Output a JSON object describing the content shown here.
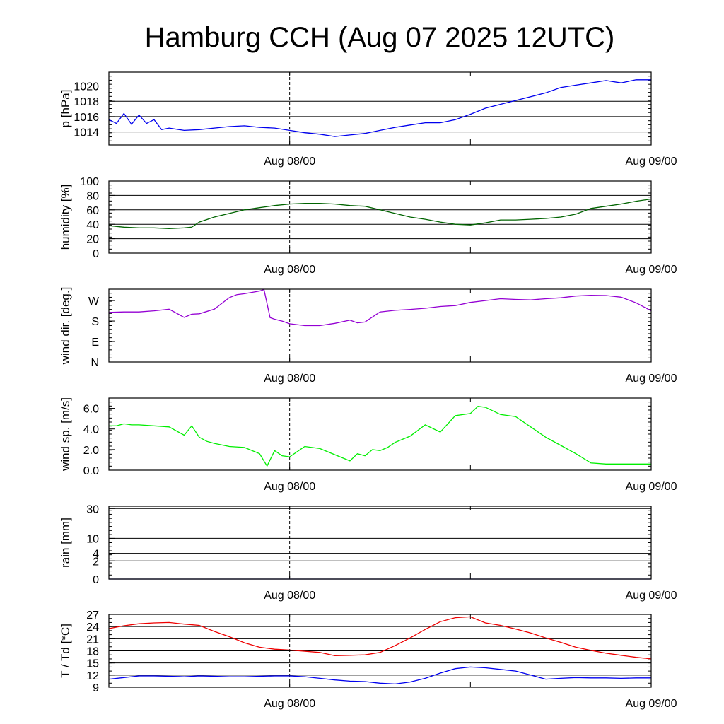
{
  "title": "Hamburg CCH (Aug 07 2025 12UTC)",
  "x_tick_labels": [
    "Aug 08/00",
    "Aug 09/00"
  ],
  "chart_data": [
    {
      "type": "line",
      "ylabel": "p [hPa]",
      "ylim": [
        1012.3,
        1021.8
      ],
      "yticks": [
        1014,
        1016,
        1018,
        1020
      ],
      "ytick_labels": [
        "1014",
        "1016",
        "1018",
        "1020"
      ],
      "grid": true,
      "series": [
        {
          "color": "#0000ee",
          "x": [
            0,
            0.5,
            1,
            1.5,
            2,
            2.5,
            3,
            3.5,
            4,
            5,
            6,
            7,
            8,
            9,
            10,
            11,
            12,
            13,
            14,
            15,
            16,
            17,
            18,
            19,
            20,
            21,
            22,
            23,
            24,
            25,
            26,
            27,
            28,
            29,
            30,
            31,
            32,
            33,
            34,
            35,
            36
          ],
          "y": [
            1015.6,
            1015.1,
            1016.4,
            1015.0,
            1016.2,
            1015.1,
            1015.6,
            1014.3,
            1014.5,
            1014.2,
            1014.3,
            1014.5,
            1014.7,
            1014.8,
            1014.6,
            1014.5,
            1014.2,
            1013.9,
            1013.7,
            1013.4,
            1013.6,
            1013.8,
            1014.2,
            1014.6,
            1014.9,
            1015.2,
            1015.2,
            1015.6,
            1016.3,
            1017.1,
            1017.6,
            1018.1,
            1018.6,
            1019.1,
            1019.8,
            1020.1,
            1020.4,
            1020.7,
            1020.4,
            1020.8,
            1020.8
          ]
        }
      ]
    },
    {
      "type": "line",
      "ylabel": "humidity [%]",
      "ylim": [
        0,
        100
      ],
      "yticks": [
        0,
        20,
        40,
        60,
        80,
        100
      ],
      "ytick_labels": [
        "0",
        "20",
        "40",
        "60",
        "80",
        "100"
      ],
      "grid": true,
      "series": [
        {
          "color": "#006400",
          "x": [
            0,
            1,
            2,
            3,
            4,
            5,
            5.5,
            6,
            7,
            8,
            9,
            10,
            11,
            12,
            13,
            14,
            15,
            16,
            17,
            18,
            19,
            20,
            21,
            22,
            23,
            24,
            25,
            26,
            27,
            28,
            29,
            30,
            31,
            32,
            33,
            34,
            35,
            36
          ],
          "y": [
            38,
            36,
            35,
            35,
            34,
            35,
            36,
            43,
            50,
            55,
            60,
            63,
            66,
            68,
            69,
            69,
            68,
            66,
            65,
            60,
            55,
            50,
            47,
            43,
            40,
            39,
            42,
            46,
            46,
            47,
            48,
            50,
            54,
            62,
            65,
            68,
            72,
            75
          ]
        }
      ]
    },
    {
      "type": "line",
      "ylabel": "wind dir. [deg.]",
      "ylim": [
        0,
        320
      ],
      "yticks": [
        0,
        90,
        180,
        270
      ],
      "ytick_labels": [
        "N",
        "E",
        "S",
        "W"
      ],
      "grid": false,
      "series": [
        {
          "color": "#9400d3",
          "x": [
            0,
            1,
            2,
            3,
            4,
            5,
            5.5,
            6,
            7,
            8,
            8.5,
            9,
            10,
            10.3,
            10.7,
            11,
            11.5,
            12,
            13,
            14,
            15,
            16,
            16.5,
            17,
            18,
            19,
            20,
            21,
            22,
            23,
            24,
            25,
            26,
            27,
            28,
            29,
            30,
            31,
            32,
            33,
            34,
            35,
            36
          ],
          "y": [
            218,
            220,
            220,
            225,
            232,
            196,
            210,
            212,
            232,
            283,
            296,
            300,
            312,
            318,
            195,
            188,
            180,
            168,
            160,
            160,
            170,
            184,
            172,
            176,
            220,
            227,
            231,
            236,
            244,
            248,
            262,
            270,
            278,
            275,
            273,
            278,
            282,
            290,
            293,
            292,
            285,
            260,
            225
          ]
        }
      ]
    },
    {
      "type": "line",
      "ylabel": "wind sp. [m/s]",
      "ylim": [
        0,
        7
      ],
      "yticks": [
        0,
        2,
        4,
        6
      ],
      "ytick_labels": [
        "0.0",
        "2.0",
        "4.0",
        "6.0"
      ],
      "grid": false,
      "series": [
        {
          "color": "#00ee00",
          "x": [
            0,
            0.5,
            1,
            1.5,
            2,
            3,
            4,
            5,
            5.5,
            6,
            6.5,
            7,
            8,
            9,
            10,
            10.5,
            11,
            11.5,
            12,
            13,
            14,
            15,
            16,
            16.5,
            17,
            17.5,
            18,
            18.5,
            19,
            20,
            21,
            22,
            22.5,
            23,
            24,
            24.5,
            25,
            26,
            27,
            28,
            29,
            30,
            31,
            32,
            33,
            34,
            35,
            36
          ],
          "y": [
            4.3,
            4.3,
            4.5,
            4.4,
            4.4,
            4.3,
            4.2,
            3.4,
            4.3,
            3.2,
            2.8,
            2.6,
            2.3,
            2.2,
            1.6,
            0.4,
            1.9,
            1.4,
            1.3,
            2.3,
            2.1,
            1.5,
            0.9,
            1.6,
            1.4,
            2.0,
            1.9,
            2.2,
            2.7,
            3.3,
            4.4,
            3.7,
            4.5,
            5.3,
            5.5,
            6.2,
            6.1,
            5.4,
            5.2,
            4.2,
            3.2,
            2.4,
            1.6,
            0.7,
            0.6,
            0.6,
            0.6,
            0.6
          ]
        }
      ]
    },
    {
      "type": "line",
      "ylabel": "rain [mm]",
      "ylim": [
        0,
        32
      ],
      "yticks": [
        0,
        2,
        4,
        10,
        30
      ],
      "ytick_labels": [
        "0",
        "2",
        "4",
        "10",
        "30"
      ],
      "grid": true,
      "series": [
        {
          "color": "#000080",
          "x": [
            0,
            36
          ],
          "y": [
            0,
            0
          ]
        }
      ]
    },
    {
      "type": "line",
      "ylabel": "T / Td [*C]",
      "ylim": [
        9,
        27
      ],
      "yticks": [
        9,
        12,
        15,
        18,
        21,
        24,
        27
      ],
      "ytick_labels": [
        "9",
        "12",
        "15",
        "18",
        "21",
        "24",
        "27"
      ],
      "grid": true,
      "series": [
        {
          "color": "#ee0000",
          "x": [
            0,
            1,
            2,
            3,
            4,
            5,
            6,
            7,
            8,
            9,
            10,
            11,
            12,
            13,
            14,
            15,
            16,
            17,
            18,
            19,
            20,
            21,
            22,
            23,
            24,
            25,
            26,
            27,
            28,
            29,
            30,
            31,
            32,
            33,
            34,
            35,
            36
          ],
          "y": [
            23.5,
            24.2,
            24.7,
            24.9,
            25.0,
            24.6,
            24.3,
            22.8,
            21.5,
            20.0,
            18.9,
            18.4,
            18.2,
            17.9,
            17.6,
            16.8,
            16.9,
            17.0,
            17.6,
            19.3,
            21.2,
            23.3,
            25.2,
            26.2,
            26.4,
            24.9,
            24.3,
            23.4,
            22.4,
            21.2,
            20.1,
            18.9,
            18.1,
            17.4,
            16.9,
            16.4,
            16.0
          ]
        },
        {
          "color": "#0000ee",
          "x": [
            0,
            1,
            2,
            3,
            4,
            5,
            6,
            7,
            8,
            9,
            10,
            11,
            12,
            13,
            14,
            15,
            16,
            17,
            18,
            19,
            20,
            21,
            22,
            23,
            24,
            25,
            26,
            27,
            28,
            29,
            30,
            31,
            32,
            33,
            34,
            35,
            36
          ],
          "y": [
            11.0,
            11.4,
            11.8,
            11.8,
            11.7,
            11.6,
            11.8,
            11.7,
            11.6,
            11.6,
            11.7,
            11.8,
            11.8,
            11.6,
            11.2,
            10.8,
            10.5,
            10.4,
            10.0,
            9.8,
            10.3,
            11.2,
            12.5,
            13.6,
            14.0,
            13.8,
            13.4,
            13.0,
            12.0,
            11.0,
            11.2,
            11.4,
            11.3,
            11.3,
            11.2,
            11.3,
            11.3
          ]
        }
      ]
    }
  ]
}
